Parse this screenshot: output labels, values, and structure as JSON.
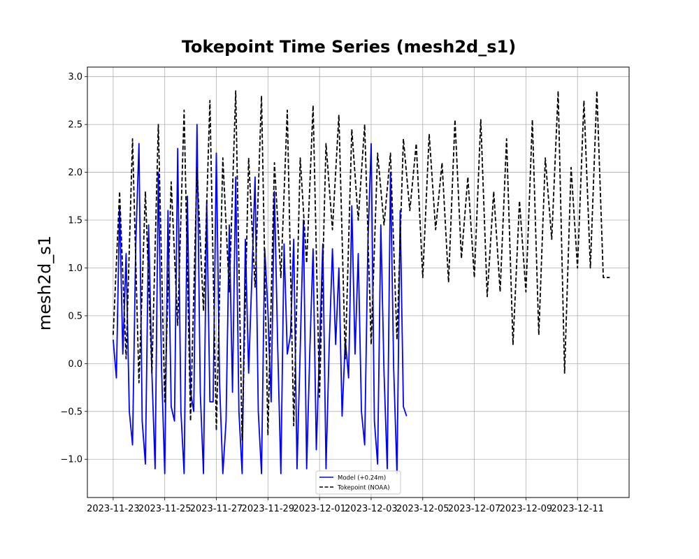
{
  "chart_data": {
    "type": "line",
    "title": "Tokepoint Time Series (mesh2d_s1)",
    "xlabel": "",
    "ylabel": "mesh2d_s1",
    "xlim": [
      "2023-11-22T00:00",
      "2023-12-13T00:00"
    ],
    "ylim": [
      -1.4,
      3.1
    ],
    "yticks": [
      -1.0,
      -0.5,
      0.0,
      0.5,
      1.0,
      1.5,
      2.0,
      2.5,
      3.0
    ],
    "ytick_labels": [
      "−1.0",
      "−0.5",
      "0.0",
      "0.5",
      "1.0",
      "1.5",
      "2.0",
      "2.5",
      "3.0"
    ],
    "xticks": [
      "2023-11-23",
      "2023-11-25",
      "2023-11-27",
      "2023-11-29",
      "2023-12-01",
      "2023-12-03",
      "2023-12-05",
      "2023-12-07",
      "2023-12-09",
      "2023-12-11"
    ],
    "grid": true,
    "legend_position": "lower center",
    "series": [
      {
        "name": "Model (+0.24m)",
        "color": "#0000ff",
        "style": "solid",
        "x": [
          "2023-11-23T00:00",
          "2023-11-23T03:00",
          "2023-11-23T06:00",
          "2023-11-23T09:00",
          "2023-11-23T12:00",
          "2023-11-23T15:00",
          "2023-11-23T18:00",
          "2023-11-23T21:00",
          "2023-11-24T00:00",
          "2023-11-24T03:00",
          "2023-11-24T06:00",
          "2023-11-24T09:00",
          "2023-11-24T12:00",
          "2023-11-24T15:00",
          "2023-11-24T18:00",
          "2023-11-24T21:00",
          "2023-11-25T00:00",
          "2023-11-25T03:00",
          "2023-11-25T06:00",
          "2023-11-25T09:00",
          "2023-11-25T12:00",
          "2023-11-25T15:00",
          "2023-11-25T18:00",
          "2023-11-25T21:00",
          "2023-11-26T00:00",
          "2023-11-26T03:00",
          "2023-11-26T06:00",
          "2023-11-26T09:00",
          "2023-11-26T12:00",
          "2023-11-26T15:00",
          "2023-11-26T18:00",
          "2023-11-26T21:00",
          "2023-11-27T00:00",
          "2023-11-27T03:00",
          "2023-11-27T06:00",
          "2023-11-27T09:00",
          "2023-11-27T12:00",
          "2023-11-27T15:00",
          "2023-11-27T18:00",
          "2023-11-27T21:00",
          "2023-11-28T00:00",
          "2023-11-28T03:00",
          "2023-11-28T06:00",
          "2023-11-28T09:00",
          "2023-11-28T12:00",
          "2023-11-28T15:00",
          "2023-11-28T18:00",
          "2023-11-28T21:00",
          "2023-11-29T00:00",
          "2023-11-29T03:00",
          "2023-11-29T06:00",
          "2023-11-29T09:00",
          "2023-11-29T12:00",
          "2023-11-29T15:00",
          "2023-11-29T18:00",
          "2023-11-29T21:00",
          "2023-11-30T00:00",
          "2023-11-30T03:00",
          "2023-11-30T06:00",
          "2023-11-30T09:00",
          "2023-11-30T12:00",
          "2023-11-30T15:00",
          "2023-11-30T18:00",
          "2023-11-30T21:00",
          "2023-12-01T00:00",
          "2023-12-01T03:00",
          "2023-12-01T06:00",
          "2023-12-01T09:00",
          "2023-12-01T12:00",
          "2023-12-01T15:00",
          "2023-12-01T18:00",
          "2023-12-01T21:00",
          "2023-12-02T00:00",
          "2023-12-02T03:00",
          "2023-12-02T06:00",
          "2023-12-02T09:00",
          "2023-12-02T12:00",
          "2023-12-02T15:00",
          "2023-12-02T18:00",
          "2023-12-02T21:00",
          "2023-12-03T00:00",
          "2023-12-03T03:00",
          "2023-12-03T06:00",
          "2023-12-03T09:00",
          "2023-12-03T12:00",
          "2023-12-03T15:00",
          "2023-12-03T18:00",
          "2023-12-03T21:00",
          "2023-12-04T00:00",
          "2023-12-04T03:00",
          "2023-12-04T06:00",
          "2023-12-04T09:00"
        ],
        "y": [
          0.25,
          -0.15,
          1.65,
          0.1,
          1.15,
          -0.5,
          -0.85,
          1.25,
          2.3,
          -0.6,
          -1.05,
          1.45,
          -0.1,
          -1.1,
          2.0,
          -0.05,
          -1.15,
          1.6,
          -0.45,
          -0.6,
          2.25,
          -0.5,
          -1.15,
          1.75,
          -0.3,
          -0.5,
          2.5,
          -0.3,
          -1.15,
          1.7,
          -0.4,
          -0.4,
          2.2,
          -0.2,
          -1.15,
          -0.6,
          1.45,
          -0.3,
          1.95,
          -0.5,
          -1.15,
          1.3,
          -0.1,
          0.9,
          1.95,
          -0.5,
          -1.15,
          1.2,
          0.55,
          -0.4,
          1.8,
          0.2,
          -1.15,
          1.25,
          0.1,
          0.3,
          1.3,
          -1.1,
          0.15,
          1.5,
          -1.1,
          0.15,
          1.2,
          -0.9,
          0.15,
          1.25,
          -1.1,
          0.2,
          1.2,
          0.2,
          1.0,
          -0.55,
          0.25,
          -0.15,
          1.65,
          0.1,
          1.15,
          -0.5,
          -0.85,
          1.25,
          2.3,
          -0.6,
          -1.05,
          1.45,
          -0.1,
          -1.1,
          2.0,
          -0.05,
          -1.15,
          1.6,
          -0.45,
          -0.55
        ]
      },
      {
        "name": "Tokepoint (NOAA)",
        "color": "#000000",
        "style": "dashed",
        "x": [
          "2023-11-23T00:00",
          "2023-11-23T06:00",
          "2023-11-23T12:00",
          "2023-11-23T18:00",
          "2023-11-24T00:00",
          "2023-11-24T06:00",
          "2023-11-24T12:00",
          "2023-11-24T18:00",
          "2023-11-25T00:00",
          "2023-11-25T06:00",
          "2023-11-25T12:00",
          "2023-11-25T18:00",
          "2023-11-26T00:00",
          "2023-11-26T06:00",
          "2023-11-26T12:00",
          "2023-11-26T18:00",
          "2023-11-27T00:00",
          "2023-11-27T06:00",
          "2023-11-27T12:00",
          "2023-11-27T18:00",
          "2023-11-28T00:00",
          "2023-11-28T06:00",
          "2023-11-28T12:00",
          "2023-11-28T18:00",
          "2023-11-29T00:00",
          "2023-11-29T06:00",
          "2023-11-29T12:00",
          "2023-11-29T18:00",
          "2023-11-30T00:00",
          "2023-11-30T06:00",
          "2023-11-30T12:00",
          "2023-11-30T18:00",
          "2023-12-01T00:00",
          "2023-12-01T06:00",
          "2023-12-01T12:00",
          "2023-12-01T18:00",
          "2023-12-02T00:00",
          "2023-12-02T06:00",
          "2023-12-02T12:00",
          "2023-12-02T18:00",
          "2023-12-03T00:00",
          "2023-12-03T06:00",
          "2023-12-03T12:00",
          "2023-12-03T18:00",
          "2023-12-04T00:00",
          "2023-12-04T06:00",
          "2023-12-04T12:00",
          "2023-12-04T18:00",
          "2023-12-05T00:00",
          "2023-12-05T06:00",
          "2023-12-05T12:00",
          "2023-12-05T18:00",
          "2023-12-06T00:00",
          "2023-12-06T06:00",
          "2023-12-06T12:00",
          "2023-12-06T18:00",
          "2023-12-07T00:00",
          "2023-12-07T06:00",
          "2023-12-07T12:00",
          "2023-12-07T18:00",
          "2023-12-08T00:00",
          "2023-12-08T06:00",
          "2023-12-08T12:00",
          "2023-12-08T18:00",
          "2023-12-09T00:00",
          "2023-12-09T06:00",
          "2023-12-09T12:00",
          "2023-12-09T18:00",
          "2023-12-10T00:00",
          "2023-12-10T06:00",
          "2023-12-10T12:00",
          "2023-12-10T18:00",
          "2023-12-11T00:00",
          "2023-12-11T06:00",
          "2023-12-11T12:00",
          "2023-12-11T18:00",
          "2023-12-12T00:00",
          "2023-12-12T06:00"
        ],
        "y": [
          0.3,
          1.8,
          0.05,
          2.35,
          -0.2,
          1.8,
          -0.1,
          2.5,
          -0.4,
          1.9,
          0.4,
          2.65,
          -0.6,
          2.05,
          0.55,
          2.75,
          -0.7,
          2.15,
          0.75,
          2.85,
          -0.8,
          2.15,
          0.8,
          2.8,
          -0.75,
          2.1,
          0.9,
          2.65,
          -0.65,
          2.15,
          1.05,
          2.7,
          -0.35,
          2.3,
          1.4,
          2.6,
          0.05,
          2.45,
          1.5,
          2.5,
          0.2,
          2.2,
          1.45,
          2.2,
          0.25,
          2.35,
          1.6,
          2.3,
          0.9,
          2.4,
          1.4,
          2.1,
          0.85,
          2.55,
          1.1,
          1.95,
          0.9,
          2.55,
          0.7,
          1.8,
          0.75,
          2.35,
          0.2,
          1.7,
          0.75,
          2.55,
          0.3,
          2.15,
          1.3,
          2.85,
          -0.1,
          2.05,
          1.0,
          2.75,
          1.0,
          2.85,
          0.9,
          0.9
        ]
      }
    ]
  }
}
